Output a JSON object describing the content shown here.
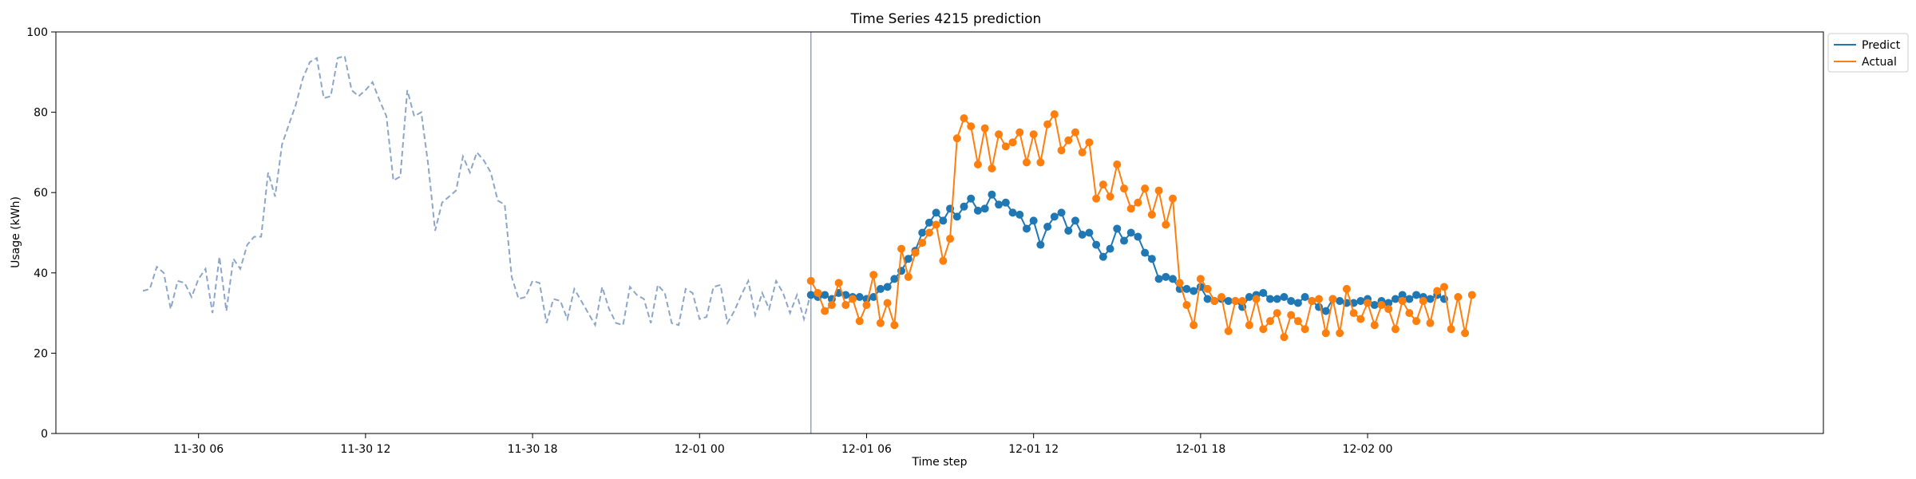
{
  "chart_data": {
    "type": "line",
    "title": "Time Series 4215 prediction",
    "xlabel": "Time step",
    "ylabel": "Usage (kWh)",
    "ylim": [
      0,
      100
    ],
    "yticks": [
      0,
      20,
      40,
      60,
      80,
      100
    ],
    "xlim": [
      -12.5,
      241.5
    ],
    "xticks": [
      {
        "x": 8,
        "label": "11-30 06"
      },
      {
        "x": 32,
        "label": "11-30 12"
      },
      {
        "x": 56,
        "label": "11-30 18"
      },
      {
        "x": 80,
        "label": "12-01 00"
      },
      {
        "x": 104,
        "label": "12-01 06"
      },
      {
        "x": 128,
        "label": "12-01 12"
      },
      {
        "x": 152,
        "label": "12-01 18"
      },
      {
        "x": 176,
        "label": "12-02 00"
      }
    ],
    "grid": false,
    "legend_position": "upper right, outside plot",
    "forecast_start_x": 96,
    "history": {
      "x_start": 0,
      "color": "#8ca6c9",
      "values": [
        35.5,
        36,
        41.5,
        40,
        31,
        38,
        37.5,
        34,
        38.5,
        41,
        30,
        44,
        30.5,
        43.5,
        41,
        47,
        49,
        49,
        65,
        59,
        72,
        77,
        82,
        88.5,
        92.5,
        93.5,
        83.5,
        84,
        93.5,
        94,
        85.5,
        84,
        85.5,
        87.5,
        83,
        79,
        63,
        64,
        85.5,
        79,
        80,
        67,
        50.5,
        57.5,
        59,
        60.5,
        69,
        65,
        70,
        68,
        65,
        58,
        57,
        39,
        33.5,
        34,
        38,
        37.5,
        27.5,
        33.5,
        33,
        28.5,
        36,
        33,
        30,
        27,
        36.5,
        31,
        27.5,
        27,
        36.5,
        34.5,
        33.5,
        27.5,
        37,
        35,
        27.5,
        27,
        36,
        35,
        28.5,
        29,
        36.5,
        37,
        27.5,
        30.5,
        34.5,
        38,
        29.5,
        35,
        31,
        38,
        35,
        30,
        34.5,
        28.5,
        35
      ]
    },
    "series": [
      {
        "name": "Predict",
        "color": "#1f77b4",
        "x_start": 96,
        "values": [
          34.5,
          34,
          34.5,
          33.5,
          35,
          34.5,
          34,
          34,
          33.5,
          34,
          36,
          36.5,
          38.5,
          40.5,
          43.5,
          45.5,
          50,
          52.5,
          55,
          53,
          56,
          54,
          56.5,
          58.5,
          55.5,
          56,
          59.5,
          57,
          57.5,
          55,
          54.5,
          51,
          53,
          47,
          51.5,
          54,
          55,
          50.5,
          53,
          49.5,
          50,
          47,
          44,
          46,
          51,
          48,
          50,
          49,
          45,
          43.5,
          38.5,
          39,
          38.5,
          36,
          36,
          35.5,
          36.5,
          33.5,
          33,
          33.5,
          33,
          33,
          31.5,
          34,
          34.5,
          35,
          33.5,
          33.5,
          34,
          33,
          32.5,
          34,
          33,
          31.5,
          30.5,
          33.5,
          33,
          32.5,
          32.5,
          33,
          33.5,
          32,
          33,
          32.5,
          33.5,
          34.5,
          33.5,
          34.5,
          34,
          33.5,
          34.5,
          33.5
        ]
      },
      {
        "name": "Actual",
        "color": "#ff7f0e",
        "x_start": 96,
        "values": [
          38,
          35,
          30.5,
          32,
          37.5,
          32,
          33.5,
          28,
          32,
          39.5,
          27.5,
          32.5,
          27,
          46,
          39,
          45,
          47.5,
          50,
          52,
          43,
          48.5,
          73.5,
          78.5,
          76.5,
          67,
          76,
          66,
          74.5,
          71.5,
          72.5,
          75,
          67.5,
          74.5,
          67.5,
          77,
          79.5,
          70.5,
          73,
          75,
          70,
          72.5,
          58.5,
          62,
          59,
          67,
          61,
          56,
          57.5,
          61,
          54.5,
          60.5,
          52,
          58.5,
          37.5,
          32,
          27,
          38.5,
          36,
          33,
          34,
          25.5,
          33,
          33,
          27,
          33.5,
          26,
          28,
          30,
          24,
          29.5,
          28,
          26,
          33,
          33.5,
          25,
          33.5,
          25,
          36,
          30,
          28.5,
          32.5,
          27,
          32,
          31,
          26,
          33,
          30,
          28,
          33,
          27.5,
          35.5,
          36.5,
          26,
          34,
          25,
          34.5
        ]
      }
    ]
  }
}
